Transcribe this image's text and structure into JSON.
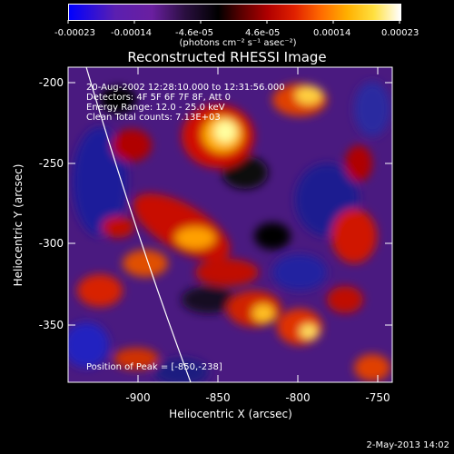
{
  "colorbar": {
    "ticks": [
      "-0.00023",
      "-0.00014",
      "-4.6e-05",
      "4.6e-05",
      "0.00014",
      "0.00023"
    ],
    "units": "(photons cm⁻² s⁻¹ asec⁻²)"
  },
  "chart_data": {
    "type": "heatmap",
    "title": "Reconstructed RHESSI Image",
    "xlabel": "Heliocentric X (arcsec)",
    "ylabel": "Heliocentric Y (arcsec)",
    "xlim": [
      -943,
      -745
    ],
    "ylim": [
      -385,
      -190
    ],
    "x_ticks": [
      -900,
      -850,
      -800,
      -750
    ],
    "y_ticks": [
      -200,
      -250,
      -300,
      -350
    ],
    "zlim": [
      -0.00023,
      0.00023
    ],
    "annotations": [
      "20-Aug-2002 12:28:10.000 to 12:31:56.000",
      "Detectors: 4F 5F 6F 7F 8F, Att 0",
      "Energy Range: 12.0 - 25.0 keV",
      "Clean     Total counts: 7.13E+03"
    ],
    "peak_label": "Position of Peak = [-850,-238]",
    "peak": [
      -850,
      -238
    ]
  },
  "timestamp": "2-May-2013 14:02"
}
